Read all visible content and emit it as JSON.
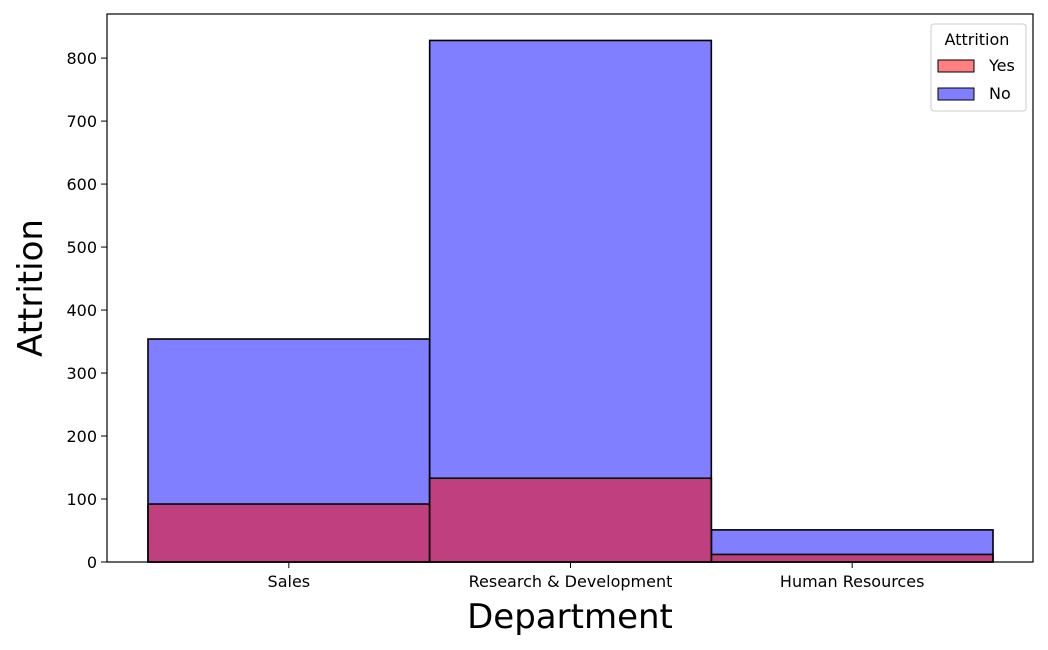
{
  "chart_data": {
    "type": "bar",
    "title": "",
    "xlabel": "Department",
    "ylabel": "Attrition",
    "categories": [
      "Sales",
      "Research & Development",
      "Human Resources"
    ],
    "series": [
      {
        "name": "Yes",
        "values": [
          92,
          133,
          12
        ],
        "color": "#ff0000",
        "opacity": 0.5
      },
      {
        "name": "No",
        "values": [
          354,
          828,
          51
        ],
        "color": "#0000ff",
        "opacity": 0.5
      }
    ],
    "yticks": [
      0,
      100,
      200,
      300,
      400,
      500,
      600,
      700,
      800
    ],
    "ylim": [
      0,
      870
    ],
    "grid": false,
    "legend": {
      "title": "Attrition",
      "placement": "top-right",
      "entries": [
        "Yes",
        "No"
      ]
    },
    "overlay": true
  }
}
